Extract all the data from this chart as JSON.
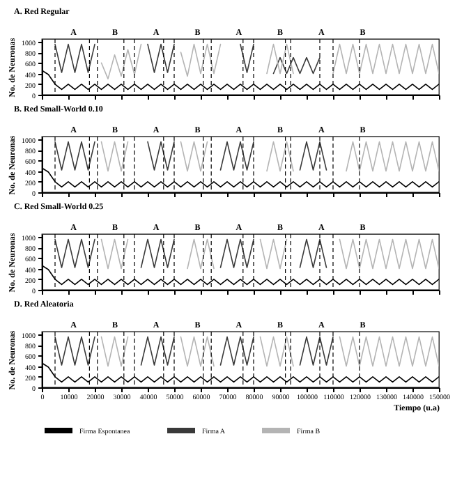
{
  "chart_data": [
    {
      "type": "line",
      "title": "A. Red Regular",
      "ylabel": "No. de Neuronas",
      "xlim": [
        0,
        150000
      ],
      "xticks": [
        0,
        10000,
        20000,
        30000,
        40000,
        50000,
        60000,
        70000,
        80000,
        90000,
        100000,
        110000,
        120000,
        130000,
        140000,
        150000
      ],
      "ylim": [
        0,
        1050
      ],
      "yticks": [
        0,
        200,
        400,
        600,
        800,
        1000
      ],
      "tick_labels": "y",
      "grid": false,
      "legend": false,
      "marker": "none",
      "line_style": "solid",
      "x": [
        0,
        2500,
        5000,
        7500,
        10000,
        12500,
        15000,
        17500,
        20000,
        22500,
        25000,
        27500,
        30000,
        32500,
        35000,
        37500,
        40000,
        42500,
        45000,
        47500,
        50000,
        52500,
        55000,
        57500,
        60000,
        62500,
        65000,
        67500,
        70000,
        72500,
        75000,
        77500,
        80000,
        82500,
        85000,
        87500,
        90000,
        92500,
        95000,
        97500,
        100000,
        102500,
        105000,
        107500,
        110000,
        112500,
        115000,
        117500,
        120000,
        122500,
        125000,
        127500,
        130000,
        132500,
        135000,
        137500,
        140000,
        142500,
        145000,
        147500,
        150000
      ],
      "series": [
        {
          "color": "#000000",
          "values": [
            460,
            380,
            200,
            100,
            200,
            100,
            200,
            100,
            200,
            100,
            200,
            100,
            200,
            100,
            200,
            100,
            200,
            100,
            200,
            100,
            200,
            100,
            200,
            100,
            200,
            100,
            200,
            100,
            200,
            100,
            200,
            100,
            200,
            100,
            200,
            100,
            200,
            100,
            200,
            100,
            200,
            100,
            200,
            100,
            200,
            100,
            200,
            100,
            200,
            100,
            200,
            100,
            200,
            100,
            200,
            100,
            200,
            100,
            200,
            100,
            200
          ]
        },
        {
          "color": "#3a3a3a",
          "values": [
            null,
            null,
            950,
            420,
            950,
            420,
            950,
            420,
            950,
            null,
            null,
            null,
            null,
            null,
            null,
            null,
            950,
            420,
            950,
            420,
            950,
            null,
            null,
            null,
            null,
            null,
            null,
            null,
            null,
            null,
            950,
            420,
            950,
            null,
            null,
            400,
            700,
            400,
            700,
            400,
            700,
            400,
            700,
            null,
            null,
            null,
            null,
            null,
            null,
            null,
            null,
            null,
            null,
            null,
            null,
            null,
            null,
            null,
            null,
            null,
            null
          ]
        },
        {
          "color": "#b4b4b4",
          "values": [
            null,
            null,
            null,
            null,
            null,
            null,
            null,
            null,
            null,
            600,
            300,
            750,
            350,
            850,
            380,
            950,
            null,
            null,
            null,
            null,
            null,
            800,
            350,
            950,
            400,
            950,
            400,
            950,
            null,
            null,
            null,
            null,
            null,
            null,
            400,
            950,
            400,
            950,
            400,
            null,
            null,
            null,
            null,
            null,
            400,
            950,
            400,
            950,
            400,
            950,
            400,
            950,
            400,
            950,
            400,
            950,
            400,
            950,
            400,
            950,
            400
          ]
        }
      ],
      "annotations": [
        "A",
        "B",
        "A",
        "B",
        "A",
        "B",
        "A",
        "B"
      ],
      "ref_lines": [
        {
          "axis": "x",
          "value": 5000,
          "color": "#000000",
          "line_style": "dashed"
        },
        {
          "axis": "x",
          "value": 18000,
          "color": "#000000",
          "line_style": "dashed"
        },
        {
          "axis": "x",
          "value": 21000,
          "color": "#000000",
          "line_style": "dashed"
        },
        {
          "axis": "x",
          "value": 31000,
          "color": "#000000",
          "line_style": "dashed"
        },
        {
          "axis": "x",
          "value": 35000,
          "color": "#000000",
          "line_style": "dashed"
        },
        {
          "axis": "x",
          "value": 46000,
          "color": "#000000",
          "line_style": "dashed"
        },
        {
          "axis": "x",
          "value": 50000,
          "color": "#000000",
          "line_style": "dashed"
        },
        {
          "axis": "x",
          "value": 61000,
          "color": "#000000",
          "line_style": "dashed"
        },
        {
          "axis": "x",
          "value": 64000,
          "color": "#000000",
          "line_style": "dashed"
        },
        {
          "axis": "x",
          "value": 76000,
          "color": "#000000",
          "line_style": "dashed"
        },
        {
          "axis": "x",
          "value": 80000,
          "color": "#000000",
          "line_style": "dashed"
        },
        {
          "axis": "x",
          "value": 92000,
          "color": "#000000",
          "line_style": "dashed"
        },
        {
          "axis": "x",
          "value": 94000,
          "color": "#000000",
          "line_style": "dashed"
        },
        {
          "axis": "x",
          "value": 105000,
          "color": "#000000",
          "line_style": "dashed"
        },
        {
          "axis": "x",
          "value": 110000,
          "color": "#000000",
          "line_style": "dashed"
        },
        {
          "axis": "x",
          "value": 120000,
          "color": "#000000",
          "line_style": "dashed"
        }
      ]
    },
    {
      "type": "line",
      "title": "B. Red Small-World 0.10",
      "ylabel": "No. de Neuronas",
      "xlim": [
        0,
        150000
      ],
      "xticks": [
        0,
        10000,
        20000,
        30000,
        40000,
        50000,
        60000,
        70000,
        80000,
        90000,
        100000,
        110000,
        120000,
        130000,
        140000,
        150000
      ],
      "ylim": [
        0,
        1050
      ],
      "yticks": [
        0,
        200,
        400,
        600,
        800,
        1000
      ],
      "tick_labels": "y",
      "grid": false,
      "legend": false,
      "marker": "none",
      "line_style": "solid",
      "x": [
        0,
        2500,
        5000,
        7500,
        10000,
        12500,
        15000,
        17500,
        20000,
        22500,
        25000,
        27500,
        30000,
        32500,
        35000,
        37500,
        40000,
        42500,
        45000,
        47500,
        50000,
        52500,
        55000,
        57500,
        60000,
        62500,
        65000,
        67500,
        70000,
        72500,
        75000,
        77500,
        80000,
        82500,
        85000,
        87500,
        90000,
        92500,
        95000,
        97500,
        100000,
        102500,
        105000,
        107500,
        110000,
        112500,
        115000,
        117500,
        120000,
        122500,
        125000,
        127500,
        130000,
        132500,
        135000,
        137500,
        140000,
        142500,
        145000,
        147500,
        150000
      ],
      "series": [
        {
          "color": "#000000",
          "values": [
            460,
            380,
            200,
            100,
            200,
            100,
            200,
            100,
            200,
            100,
            200,
            100,
            200,
            100,
            200,
            100,
            200,
            100,
            200,
            100,
            200,
            100,
            200,
            100,
            200,
            100,
            200,
            100,
            200,
            100,
            200,
            100,
            200,
            100,
            200,
            100,
            200,
            100,
            200,
            100,
            200,
            100,
            200,
            100,
            200,
            100,
            200,
            100,
            200,
            100,
            200,
            100,
            200,
            100,
            200,
            100,
            200,
            100,
            200,
            100,
            200
          ]
        },
        {
          "color": "#3a3a3a",
          "values": [
            null,
            null,
            950,
            420,
            950,
            420,
            950,
            420,
            950,
            null,
            null,
            null,
            null,
            null,
            null,
            null,
            950,
            420,
            950,
            420,
            950,
            null,
            null,
            null,
            null,
            null,
            null,
            420,
            950,
            420,
            950,
            420,
            950,
            null,
            null,
            null,
            null,
            null,
            null,
            420,
            950,
            420,
            950,
            420,
            null,
            null,
            null,
            null,
            null,
            null,
            null,
            null,
            null,
            null,
            null,
            null,
            null,
            null,
            null,
            null,
            null
          ]
        },
        {
          "color": "#b4b4b4",
          "values": [
            null,
            null,
            null,
            null,
            null,
            null,
            null,
            null,
            null,
            950,
            400,
            950,
            400,
            950,
            null,
            null,
            null,
            null,
            null,
            null,
            null,
            950,
            400,
            950,
            400,
            950,
            null,
            null,
            null,
            null,
            null,
            null,
            null,
            null,
            400,
            950,
            400,
            950,
            400,
            null,
            null,
            null,
            null,
            null,
            null,
            null,
            400,
            950,
            400,
            950,
            400,
            950,
            400,
            950,
            400,
            950,
            400,
            950,
            400,
            950,
            400
          ]
        }
      ],
      "annotations": [
        "A",
        "B",
        "A",
        "B",
        "A",
        "B",
        "A",
        "B"
      ],
      "ref_lines": [
        {
          "axis": "x",
          "value": 5000,
          "color": "#000000",
          "line_style": "dashed"
        },
        {
          "axis": "x",
          "value": 18000,
          "color": "#000000",
          "line_style": "dashed"
        },
        {
          "axis": "x",
          "value": 21000,
          "color": "#000000",
          "line_style": "dashed"
        },
        {
          "axis": "x",
          "value": 31000,
          "color": "#000000",
          "line_style": "dashed"
        },
        {
          "axis": "x",
          "value": 35000,
          "color": "#000000",
          "line_style": "dashed"
        },
        {
          "axis": "x",
          "value": 46000,
          "color": "#000000",
          "line_style": "dashed"
        },
        {
          "axis": "x",
          "value": 50000,
          "color": "#000000",
          "line_style": "dashed"
        },
        {
          "axis": "x",
          "value": 61000,
          "color": "#000000",
          "line_style": "dashed"
        },
        {
          "axis": "x",
          "value": 64000,
          "color": "#000000",
          "line_style": "dashed"
        },
        {
          "axis": "x",
          "value": 76000,
          "color": "#000000",
          "line_style": "dashed"
        },
        {
          "axis": "x",
          "value": 80000,
          "color": "#000000",
          "line_style": "dashed"
        },
        {
          "axis": "x",
          "value": 92000,
          "color": "#000000",
          "line_style": "dashed"
        },
        {
          "axis": "x",
          "value": 94000,
          "color": "#000000",
          "line_style": "dashed"
        },
        {
          "axis": "x",
          "value": 105000,
          "color": "#000000",
          "line_style": "dashed"
        },
        {
          "axis": "x",
          "value": 110000,
          "color": "#000000",
          "line_style": "dashed"
        },
        {
          "axis": "x",
          "value": 120000,
          "color": "#000000",
          "line_style": "dashed"
        }
      ]
    },
    {
      "type": "line",
      "title": "C. Red Small-World 0.25",
      "ylabel": "No. de Neuronas",
      "xlim": [
        0,
        150000
      ],
      "xticks": [
        0,
        10000,
        20000,
        30000,
        40000,
        50000,
        60000,
        70000,
        80000,
        90000,
        100000,
        110000,
        120000,
        130000,
        140000,
        150000
      ],
      "ylim": [
        0,
        1050
      ],
      "yticks": [
        0,
        200,
        400,
        600,
        800,
        1000
      ],
      "tick_labels": "y",
      "grid": false,
      "legend": false,
      "marker": "none",
      "line_style": "solid",
      "x": [
        0,
        2500,
        5000,
        7500,
        10000,
        12500,
        15000,
        17500,
        20000,
        22500,
        25000,
        27500,
        30000,
        32500,
        35000,
        37500,
        40000,
        42500,
        45000,
        47500,
        50000,
        52500,
        55000,
        57500,
        60000,
        62500,
        65000,
        67500,
        70000,
        72500,
        75000,
        77500,
        80000,
        82500,
        85000,
        87500,
        90000,
        92500,
        95000,
        97500,
        100000,
        102500,
        105000,
        107500,
        110000,
        112500,
        115000,
        117500,
        120000,
        122500,
        125000,
        127500,
        130000,
        132500,
        135000,
        137500,
        140000,
        142500,
        145000,
        147500,
        150000
      ],
      "series": [
        {
          "color": "#000000",
          "values": [
            460,
            380,
            200,
            100,
            200,
            100,
            200,
            100,
            200,
            100,
            200,
            100,
            200,
            100,
            200,
            100,
            200,
            100,
            200,
            100,
            200,
            100,
            200,
            100,
            200,
            100,
            200,
            100,
            200,
            100,
            200,
            100,
            200,
            100,
            200,
            100,
            200,
            100,
            200,
            100,
            200,
            100,
            200,
            100,
            200,
            100,
            200,
            100,
            200,
            100,
            200,
            100,
            200,
            100,
            200,
            100,
            200,
            100,
            200,
            100,
            200
          ]
        },
        {
          "color": "#3a3a3a",
          "values": [
            null,
            null,
            950,
            420,
            950,
            420,
            950,
            420,
            950,
            null,
            null,
            null,
            null,
            null,
            null,
            420,
            950,
            420,
            950,
            420,
            950,
            null,
            null,
            null,
            null,
            null,
            null,
            420,
            950,
            420,
            950,
            420,
            950,
            null,
            null,
            null,
            null,
            null,
            null,
            420,
            950,
            420,
            950,
            420,
            null,
            null,
            null,
            null,
            null,
            null,
            null,
            null,
            null,
            null,
            null,
            null,
            null,
            null,
            null,
            null,
            null
          ]
        },
        {
          "color": "#b4b4b4",
          "values": [
            null,
            null,
            null,
            null,
            null,
            null,
            null,
            null,
            null,
            950,
            400,
            950,
            400,
            950,
            null,
            null,
            null,
            null,
            null,
            null,
            null,
            null,
            400,
            950,
            400,
            950,
            400,
            null,
            null,
            null,
            null,
            null,
            null,
            950,
            400,
            950,
            400,
            950,
            null,
            null,
            null,
            null,
            null,
            null,
            null,
            950,
            400,
            950,
            400,
            950,
            400,
            950,
            400,
            950,
            400,
            950,
            400,
            950,
            400,
            950,
            400
          ]
        }
      ],
      "annotations": [
        "A",
        "B",
        "A",
        "B",
        "A",
        "B",
        "A",
        "B"
      ],
      "ref_lines": [
        {
          "axis": "x",
          "value": 5000,
          "color": "#000000",
          "line_style": "dashed"
        },
        {
          "axis": "x",
          "value": 18000,
          "color": "#000000",
          "line_style": "dashed"
        },
        {
          "axis": "x",
          "value": 21000,
          "color": "#000000",
          "line_style": "dashed"
        },
        {
          "axis": "x",
          "value": 31000,
          "color": "#000000",
          "line_style": "dashed"
        },
        {
          "axis": "x",
          "value": 35000,
          "color": "#000000",
          "line_style": "dashed"
        },
        {
          "axis": "x",
          "value": 46000,
          "color": "#000000",
          "line_style": "dashed"
        },
        {
          "axis": "x",
          "value": 50000,
          "color": "#000000",
          "line_style": "dashed"
        },
        {
          "axis": "x",
          "value": 61000,
          "color": "#000000",
          "line_style": "dashed"
        },
        {
          "axis": "x",
          "value": 64000,
          "color": "#000000",
          "line_style": "dashed"
        },
        {
          "axis": "x",
          "value": 76000,
          "color": "#000000",
          "line_style": "dashed"
        },
        {
          "axis": "x",
          "value": 80000,
          "color": "#000000",
          "line_style": "dashed"
        },
        {
          "axis": "x",
          "value": 92000,
          "color": "#000000",
          "line_style": "dashed"
        },
        {
          "axis": "x",
          "value": 94000,
          "color": "#000000",
          "line_style": "dashed"
        },
        {
          "axis": "x",
          "value": 105000,
          "color": "#000000",
          "line_style": "dashed"
        },
        {
          "axis": "x",
          "value": 110000,
          "color": "#000000",
          "line_style": "dashed"
        },
        {
          "axis": "x",
          "value": 120000,
          "color": "#000000",
          "line_style": "dashed"
        }
      ]
    },
    {
      "type": "line",
      "title": "D. Red Aleatoria",
      "xlabel": "Tiempo (u.a)",
      "ylabel": "No. de Neuronas",
      "xlim": [
        0,
        150000
      ],
      "xticks": [
        0,
        10000,
        20000,
        30000,
        40000,
        50000,
        60000,
        70000,
        80000,
        90000,
        100000,
        110000,
        120000,
        130000,
        140000,
        150000
      ],
      "ylim": [
        0,
        1050
      ],
      "yticks": [
        0,
        200,
        400,
        600,
        800,
        1000
      ],
      "grid": false,
      "legend": "bottom",
      "marker": "none",
      "line_style": "solid",
      "x": [
        0,
        2500,
        5000,
        7500,
        10000,
        12500,
        15000,
        17500,
        20000,
        22500,
        25000,
        27500,
        30000,
        32500,
        35000,
        37500,
        40000,
        42500,
        45000,
        47500,
        50000,
        52500,
        55000,
        57500,
        60000,
        62500,
        65000,
        67500,
        70000,
        72500,
        75000,
        77500,
        80000,
        82500,
        85000,
        87500,
        90000,
        92500,
        95000,
        97500,
        100000,
        102500,
        105000,
        107500,
        110000,
        112500,
        115000,
        117500,
        120000,
        122500,
        125000,
        127500,
        130000,
        132500,
        135000,
        137500,
        140000,
        142500,
        145000,
        147500,
        150000
      ],
      "series": [
        {
          "name": "Firma Espontanea",
          "color": "#000000",
          "values": [
            460,
            380,
            200,
            100,
            200,
            100,
            200,
            100,
            200,
            100,
            200,
            100,
            200,
            100,
            200,
            100,
            200,
            100,
            200,
            100,
            200,
            100,
            200,
            100,
            200,
            100,
            200,
            100,
            200,
            100,
            200,
            100,
            200,
            100,
            200,
            100,
            200,
            100,
            200,
            100,
            200,
            100,
            200,
            100,
            200,
            100,
            200,
            100,
            200,
            100,
            200,
            100,
            200,
            100,
            200,
            100,
            200,
            100,
            200,
            100,
            200
          ]
        },
        {
          "name": "Firma A",
          "color": "#3a3a3a",
          "values": [
            null,
            null,
            950,
            420,
            950,
            420,
            950,
            420,
            950,
            null,
            null,
            null,
            null,
            null,
            null,
            420,
            950,
            420,
            950,
            420,
            950,
            null,
            null,
            null,
            null,
            null,
            null,
            420,
            950,
            420,
            950,
            420,
            950,
            null,
            null,
            null,
            null,
            null,
            null,
            420,
            950,
            420,
            950,
            420,
            950,
            null,
            null,
            null,
            null,
            null,
            null,
            null,
            null,
            null,
            null,
            null,
            null,
            null,
            null,
            null,
            null
          ]
        },
        {
          "name": "Firma B",
          "color": "#b4b4b4",
          "values": [
            null,
            null,
            null,
            null,
            null,
            null,
            null,
            null,
            null,
            950,
            400,
            950,
            400,
            950,
            null,
            null,
            null,
            null,
            null,
            null,
            null,
            950,
            400,
            950,
            400,
            950,
            400,
            null,
            null,
            null,
            null,
            null,
            null,
            950,
            400,
            950,
            400,
            950,
            400,
            null,
            null,
            null,
            null,
            null,
            null,
            950,
            400,
            950,
            400,
            950,
            400,
            950,
            400,
            950,
            400,
            950,
            400,
            950,
            400,
            950,
            400
          ]
        }
      ],
      "annotations": [
        "A",
        "B",
        "A",
        "B",
        "A",
        "B",
        "A",
        "B"
      ],
      "ref_lines": [
        {
          "axis": "x",
          "value": 5000,
          "color": "#000000",
          "line_style": "dashed"
        },
        {
          "axis": "x",
          "value": 18000,
          "color": "#000000",
          "line_style": "dashed"
        },
        {
          "axis": "x",
          "value": 21000,
          "color": "#000000",
          "line_style": "dashed"
        },
        {
          "axis": "x",
          "value": 31000,
          "color": "#000000",
          "line_style": "dashed"
        },
        {
          "axis": "x",
          "value": 35000,
          "color": "#000000",
          "line_style": "dashed"
        },
        {
          "axis": "x",
          "value": 46000,
          "color": "#000000",
          "line_style": "dashed"
        },
        {
          "axis": "x",
          "value": 50000,
          "color": "#000000",
          "line_style": "dashed"
        },
        {
          "axis": "x",
          "value": 61000,
          "color": "#000000",
          "line_style": "dashed"
        },
        {
          "axis": "x",
          "value": 64000,
          "color": "#000000",
          "line_style": "dashed"
        },
        {
          "axis": "x",
          "value": 76000,
          "color": "#000000",
          "line_style": "dashed"
        },
        {
          "axis": "x",
          "value": 80000,
          "color": "#000000",
          "line_style": "dashed"
        },
        {
          "axis": "x",
          "value": 92000,
          "color": "#000000",
          "line_style": "dashed"
        },
        {
          "axis": "x",
          "value": 94000,
          "color": "#000000",
          "line_style": "dashed"
        },
        {
          "axis": "x",
          "value": 105000,
          "color": "#000000",
          "line_style": "dashed"
        },
        {
          "axis": "x",
          "value": 110000,
          "color": "#000000",
          "line_style": "dashed"
        },
        {
          "axis": "x",
          "value": 120000,
          "color": "#000000",
          "line_style": "dashed"
        }
      ]
    }
  ]
}
